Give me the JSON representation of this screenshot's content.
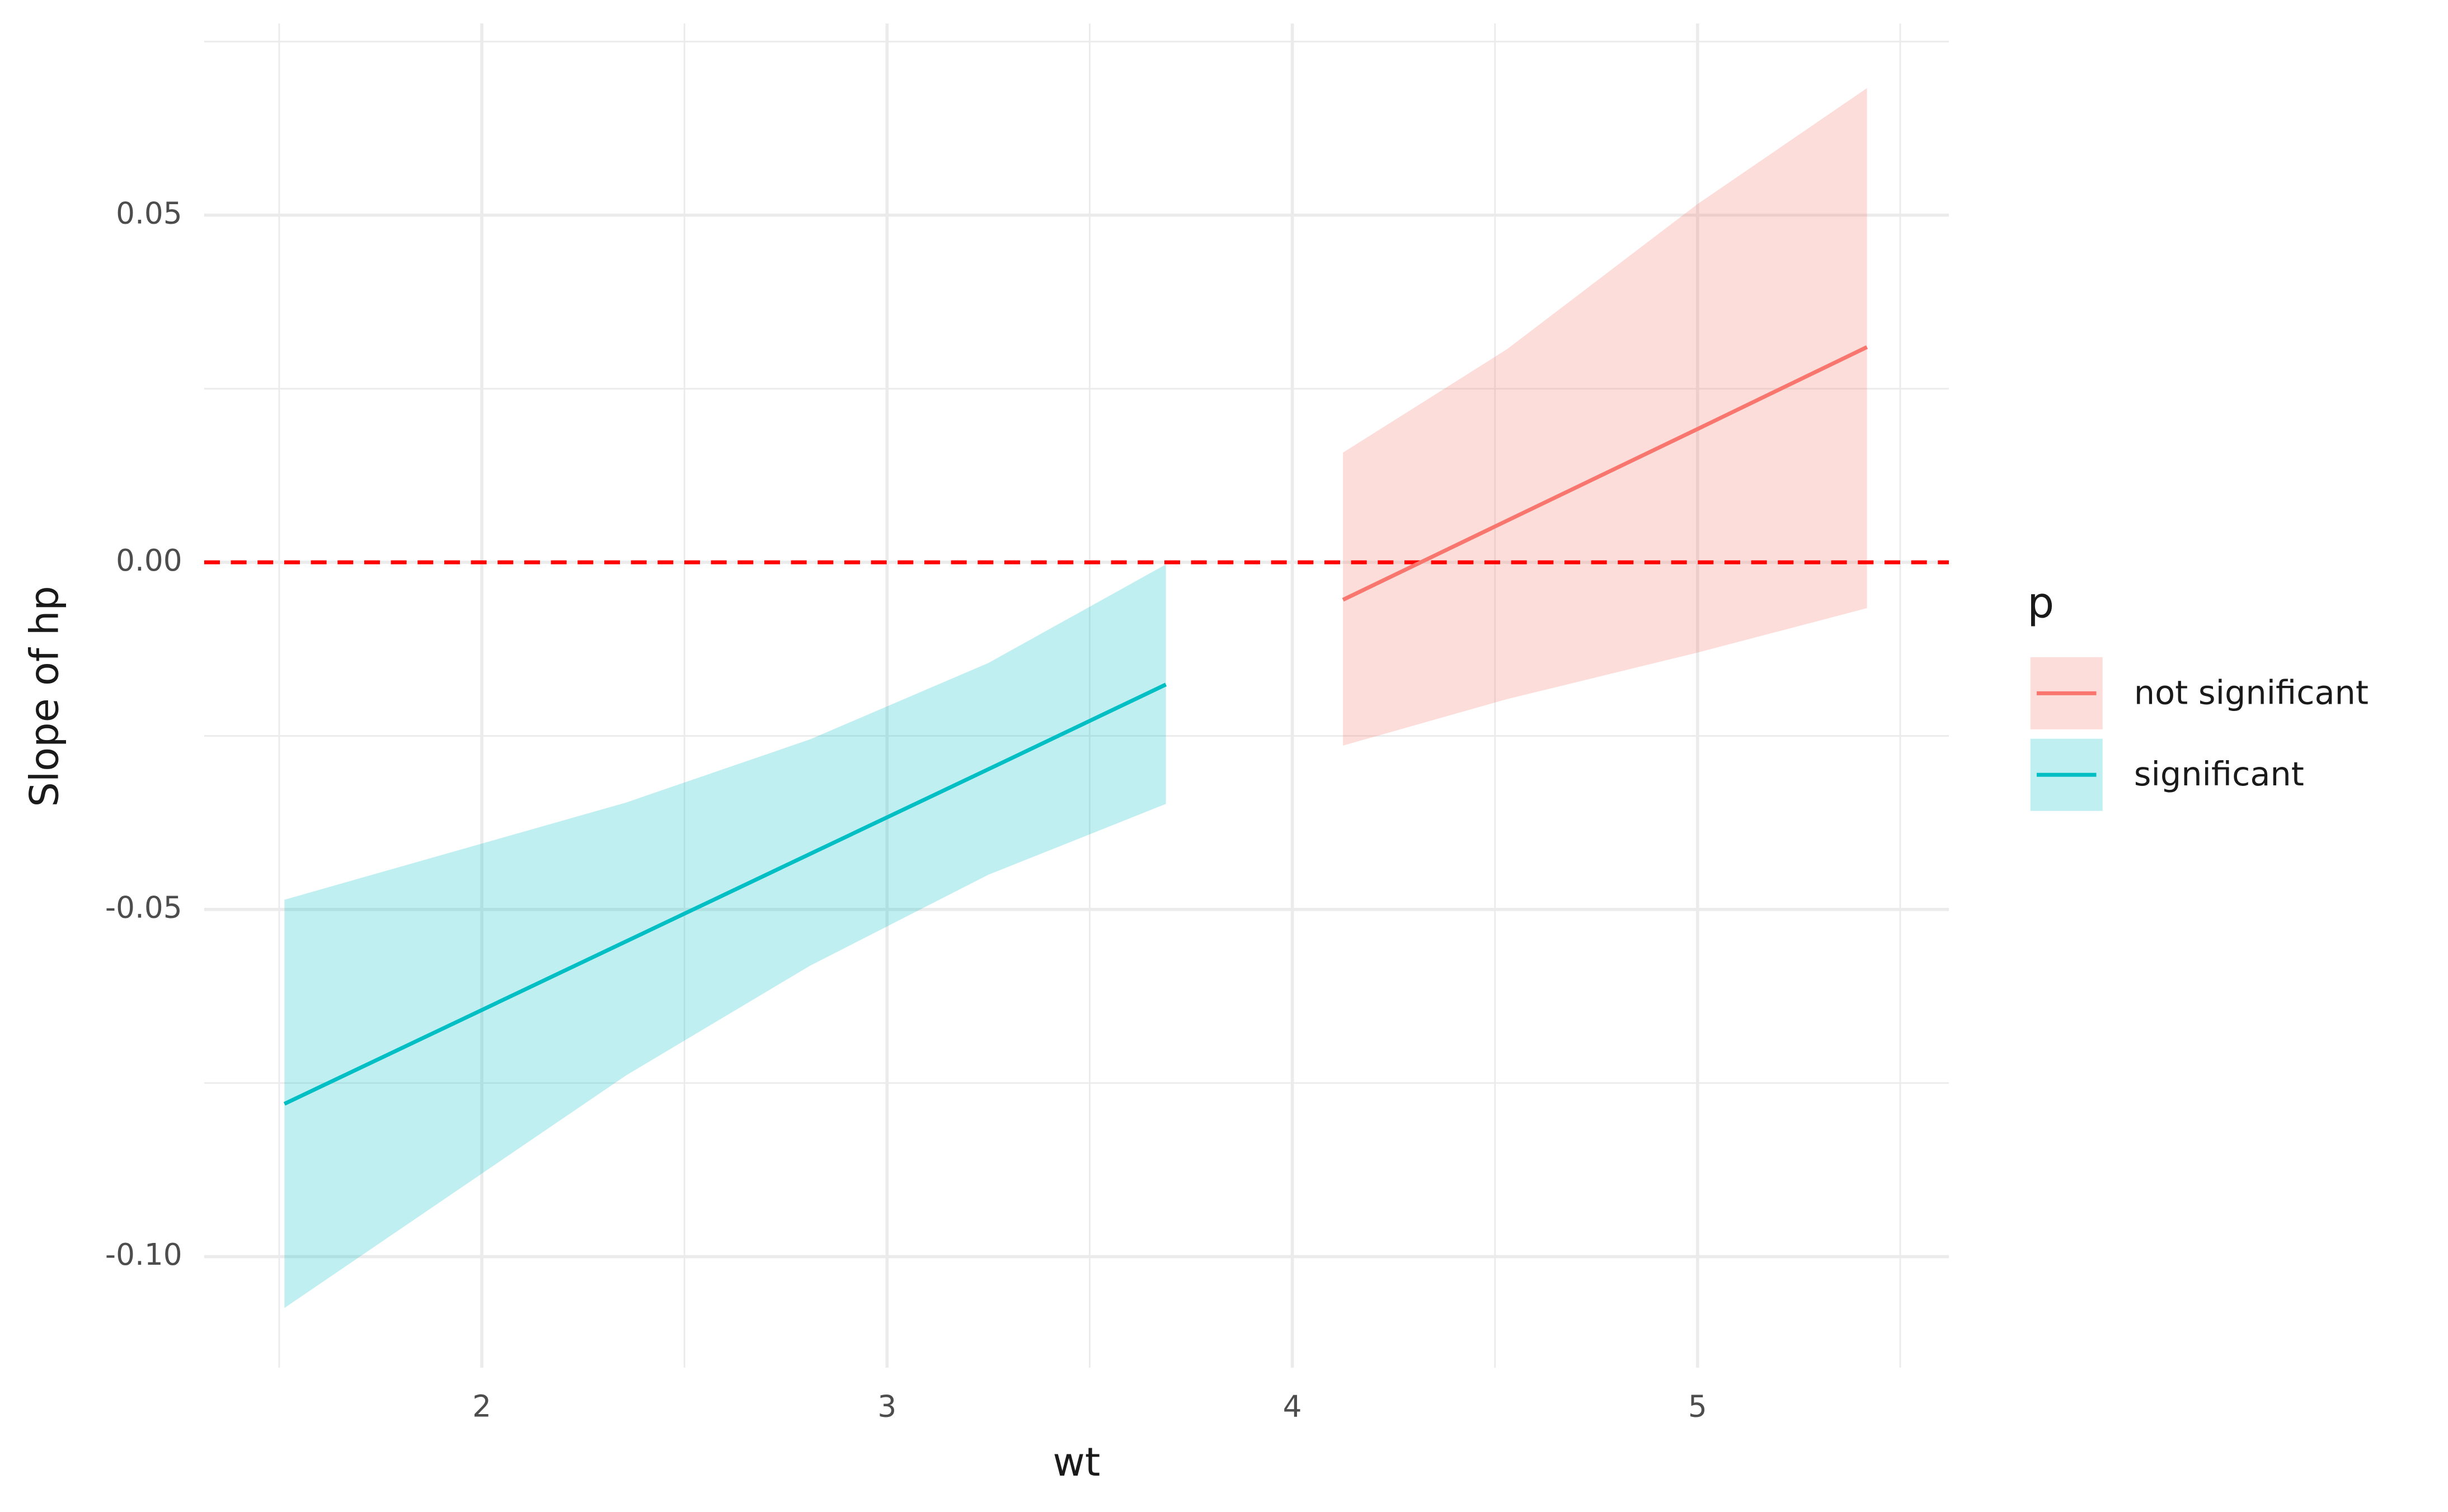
{
  "chart_data": {
    "type": "ribbon_line",
    "x_label": "wt",
    "y_label": "Slope of hp",
    "xlim": [
      1.315,
      5.62
    ],
    "ylim": [
      -0.116,
      0.0776
    ],
    "xticks": [
      2,
      3,
      4,
      5
    ],
    "yticks": [
      {
        "value": -0.1,
        "label": "-0.10"
      },
      -0.05,
      {
        "value": 0,
        "label": "0.00"
      },
      0.05
    ],
    "x_minor_grid": [
      1.5,
      2.5,
      3.5,
      4.5,
      5.5
    ],
    "y_minor_grid": [
      -0.075,
      -0.025,
      0.025,
      0.075
    ],
    "grid": true,
    "reference_line": {
      "value": 0,
      "color": "#ff0000",
      "dash": true
    },
    "ribbon_opacity": 0.25,
    "legend_title": "p",
    "legend_position": "right",
    "series": [
      {
        "name": "not significant",
        "color": "#f8766d",
        "x": [
          4.125,
          4.53,
          5.0,
          5.418
        ],
        "values": [
          -0.0054,
          0.006,
          0.0192,
          0.031
        ],
        "lower": [
          -0.0264,
          -0.0197,
          -0.013,
          -0.0066
        ],
        "upper": [
          0.0158,
          0.0307,
          0.0516,
          0.0683
        ]
      },
      {
        "name": "significant",
        "color": "#00bfc4",
        "x": [
          1.513,
          2.356,
          2.81,
          3.25,
          3.688
        ],
        "values": [
          -0.078,
          -0.0546,
          -0.042,
          -0.0298,
          -0.0176
        ],
        "lower": [
          -0.1074,
          -0.0739,
          -0.0581,
          -0.045,
          -0.0348
        ],
        "upper": [
          -0.0486,
          -0.0346,
          -0.0255,
          -0.0145,
          -0.0003
        ]
      }
    ]
  }
}
